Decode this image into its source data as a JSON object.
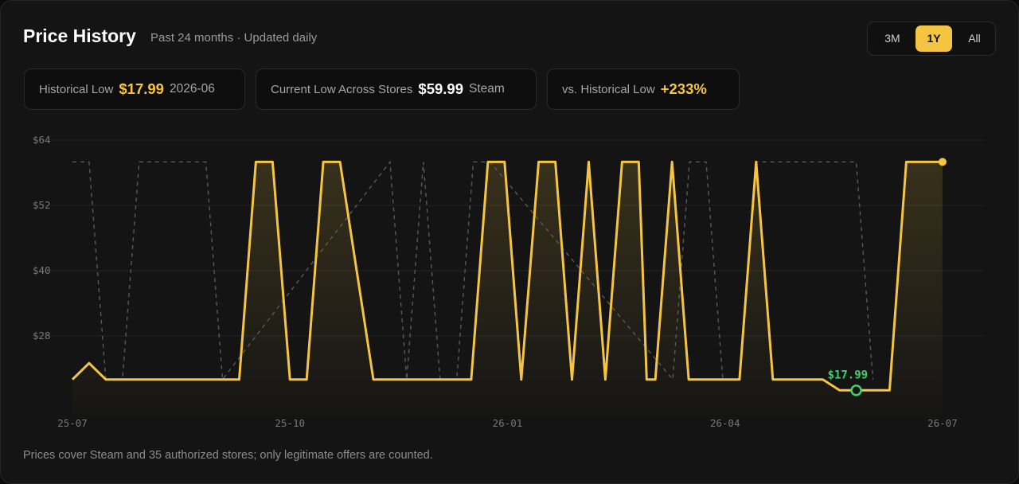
{
  "header": {
    "title": "Price History",
    "subtitle": "Past 24 months · Updated daily"
  },
  "ranges": {
    "options": [
      "3M",
      "1Y",
      "All"
    ],
    "selected": "1Y"
  },
  "stats": {
    "historical_low": {
      "label": "Historical Low",
      "value": "$17.99",
      "date": "2026-06"
    },
    "current_low": {
      "label": "Current Low Across Stores",
      "value": "$59.99",
      "store": "Steam"
    },
    "vs_low": {
      "label": "vs. Historical Low",
      "value": "+233%"
    }
  },
  "colors": {
    "accent": "#f5c542",
    "low_marker": "#3ccf6e",
    "compare_line": "#5a5a5a"
  },
  "chart_data": {
    "type": "line",
    "ylim": [
      13.5,
      64
    ],
    "yticks": [
      28,
      40,
      52,
      64
    ],
    "ytick_labels": [
      "$28",
      "$40",
      "$52",
      "$64"
    ],
    "xlim": [
      0,
      12.55
    ],
    "xticks": [
      0,
      3,
      6,
      9,
      12
    ],
    "xtick_labels": [
      "25-07",
      "25-10",
      "26-01",
      "26-04",
      "26-07"
    ],
    "grid": true,
    "series": [
      {
        "role": "primary",
        "x": [
          0,
          0.23,
          0.46,
          2.3,
          2.53,
          2.76,
          3.0,
          3.23,
          3.46,
          3.69,
          4.15,
          4.38,
          5.5,
          5.73,
          5.96,
          6.19,
          6.43,
          6.66,
          6.89,
          7.12,
          7.35,
          7.58,
          7.81,
          7.92,
          8.04,
          8.27,
          8.5,
          9.2,
          9.43,
          9.66,
          10.35,
          10.58,
          10.81,
          11.27,
          11.5,
          11.73,
          12.0
        ],
        "y": [
          19.99,
          22.99,
          19.99,
          19.99,
          59.99,
          59.99,
          19.99,
          19.99,
          59.99,
          59.99,
          19.99,
          19.99,
          19.99,
          59.99,
          59.99,
          19.99,
          59.99,
          59.99,
          19.99,
          59.99,
          19.99,
          59.99,
          59.99,
          19.99,
          19.99,
          59.99,
          19.99,
          19.99,
          59.99,
          19.99,
          19.99,
          17.99,
          17.99,
          17.99,
          59.99,
          59.99,
          59.99
        ]
      },
      {
        "role": "comparison",
        "x": [
          0,
          0.23,
          0.46,
          0.69,
          0.92,
          1.84,
          2.07,
          4.38,
          4.61,
          4.84,
          5.07,
          5.3,
          5.53,
          5.76,
          8.28,
          8.51,
          8.74,
          8.97,
          9.2,
          9.43,
          9.66,
          10.81,
          11.04
        ],
        "y": [
          59.99,
          59.99,
          19.99,
          19.99,
          59.99,
          59.99,
          19.99,
          59.99,
          19.99,
          59.99,
          19.99,
          19.99,
          59.99,
          59.99,
          19.99,
          59.99,
          59.99,
          19.99,
          19.99,
          59.99,
          59.99,
          59.99,
          19.99
        ]
      }
    ],
    "annotations": [
      {
        "x": 10.81,
        "y": 17.99,
        "text": "$17.99"
      }
    ],
    "current_point": {
      "x": 12.0,
      "y": 59.99
    }
  },
  "footer": {
    "note": "Prices cover Steam and 35 authorized stores; only legitimate offers are counted."
  }
}
